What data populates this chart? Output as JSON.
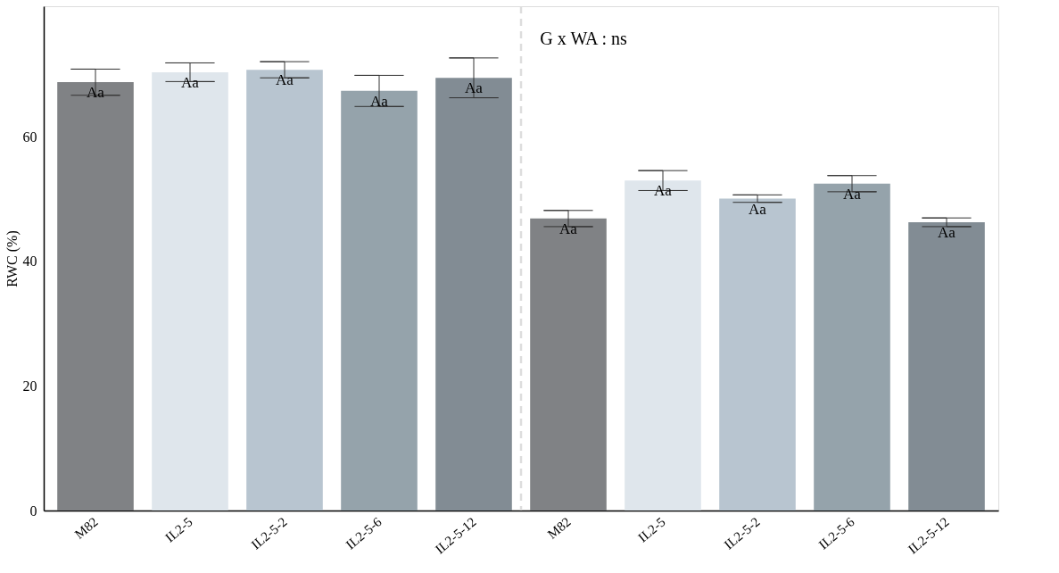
{
  "chart_data": {
    "type": "bar",
    "ylabel": "RWC (%)",
    "categories": [
      "M82",
      "IL2-5",
      "IL2-5-2",
      "IL2-5-6",
      "IL2-5-12",
      "M82",
      "IL2-5",
      "IL2-5-2",
      "IL2-5-6",
      "IL2-5-12"
    ],
    "values": [
      68.8,
      70.4,
      70.8,
      67.4,
      69.5,
      46.9,
      53.0,
      50.1,
      52.5,
      46.3
    ],
    "errors": [
      2.1,
      1.5,
      1.3,
      2.5,
      3.2,
      1.3,
      1.6,
      0.6,
      1.3,
      0.7
    ],
    "colors": [
      "#808285",
      "#dfe6ec",
      "#b8c5d0",
      "#95a3ab",
      "#828c94",
      "#808285",
      "#dfe6ec",
      "#b8c5d0",
      "#95a3ab",
      "#828c94"
    ],
    "value_labels": [
      "Aa",
      "Aa",
      "Aa",
      "Aa",
      "Aa",
      "Aa",
      "Aa",
      "Aa",
      "Aa",
      "Aa"
    ],
    "ylim": [
      0,
      81
    ],
    "yticks": [
      0,
      20,
      40,
      60
    ],
    "grid": false,
    "annotations": [
      "G x WA : ns"
    ]
  }
}
